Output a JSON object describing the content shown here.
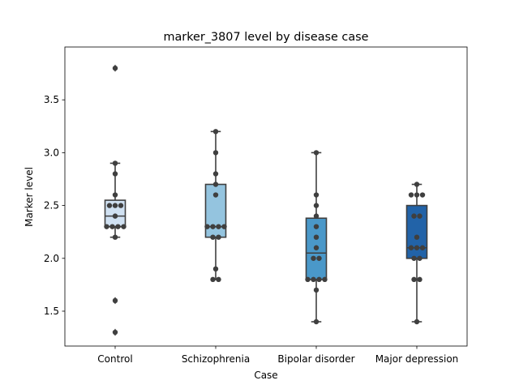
{
  "chart_data": {
    "type": "box",
    "title": "marker_3807 level by disease case",
    "xlabel": "Case",
    "ylabel": "Marker level",
    "ylim": [
      1.17,
      4.0
    ],
    "yticks": [
      "1.5",
      "2.0",
      "2.5",
      "3.0",
      "3.5"
    ],
    "ytick_values": [
      1.5,
      2.0,
      2.5,
      3.0,
      3.5
    ],
    "categories": [
      "Control",
      "Schizophrenia",
      "Bipolar disorder",
      "Major depression"
    ],
    "colors": [
      "#d0e1f2",
      "#94c4df",
      "#4a98c9",
      "#2263a8"
    ],
    "boxes": [
      {
        "q1": 2.3,
        "median": 2.4,
        "q3": 2.55,
        "whisker_low": 2.2,
        "whisker_high": 2.9,
        "outliers": [
          3.8,
          1.6,
          1.3
        ]
      },
      {
        "q1": 2.2,
        "median": 2.3,
        "q3": 2.7,
        "whisker_low": 1.8,
        "whisker_high": 3.2,
        "outliers": []
      },
      {
        "q1": 1.8,
        "median": 2.05,
        "q3": 2.38,
        "whisker_low": 1.4,
        "whisker_high": 3.0,
        "outliers": []
      },
      {
        "q1": 2.0,
        "median": 2.1,
        "q3": 2.5,
        "whisker_low": 1.4,
        "whisker_high": 2.7,
        "outliers": []
      }
    ],
    "points": [
      [
        3.8,
        2.9,
        2.8,
        2.6,
        2.5,
        2.5,
        2.5,
        2.4,
        2.3,
        2.3,
        2.3,
        2.3,
        2.2,
        1.6,
        1.3
      ],
      [
        3.2,
        3.0,
        2.8,
        2.7,
        2.6,
        2.3,
        2.3,
        2.3,
        2.3,
        2.2,
        2.2,
        1.9,
        1.8,
        1.8
      ],
      [
        3.0,
        2.6,
        2.5,
        2.4,
        2.3,
        2.2,
        2.1,
        2.0,
        2.0,
        1.8,
        1.8,
        1.8,
        1.8,
        1.7,
        1.4
      ],
      [
        2.7,
        2.6,
        2.6,
        2.6,
        2.4,
        2.4,
        2.2,
        2.1,
        2.1,
        2.1,
        2.0,
        2.0,
        1.8,
        1.8,
        1.4
      ]
    ],
    "grid": false,
    "legend": "none"
  }
}
